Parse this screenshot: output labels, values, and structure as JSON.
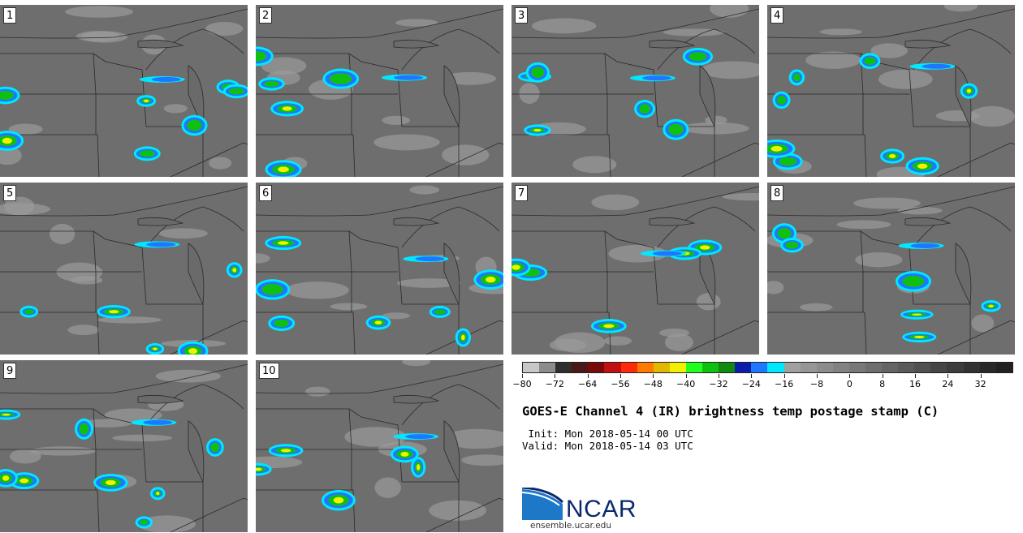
{
  "panels": [
    {
      "label": "1"
    },
    {
      "label": "2"
    },
    {
      "label": "3"
    },
    {
      "label": "4"
    },
    {
      "label": "5"
    },
    {
      "label": "6"
    },
    {
      "label": "7"
    },
    {
      "label": "8"
    },
    {
      "label": "9"
    },
    {
      "label": "10"
    }
  ],
  "colorbar": {
    "colors": [
      "#c8c8c8",
      "#8c8c8c",
      "#2e2e2e",
      "#4a1818",
      "#7a0a0a",
      "#c01010",
      "#ff2a0a",
      "#ff7a00",
      "#e0b800",
      "#f0f000",
      "#20ff20",
      "#10c010",
      "#108a10",
      "#0a1eaa",
      "#1e78ff",
      "#00e8ff",
      "#a0a0a0",
      "#969696",
      "#8c8c8c",
      "#828282",
      "#787878",
      "#6e6e6e",
      "#646464",
      "#5a5a5a",
      "#505050",
      "#464646",
      "#3c3c3c",
      "#323232",
      "#282828",
      "#202020"
    ],
    "tick_labels": [
      "−80",
      "−72",
      "−64",
      "−56",
      "−48",
      "−40",
      "−32",
      "−24",
      "−16",
      "−8",
      "0",
      "8",
      "16",
      "24",
      "32"
    ]
  },
  "title": "GOES-E Channel 4 (IR) brightness temp postage stamp (C)",
  "init_line": " Init: Mon 2018-05-14 00 UTC",
  "valid_line": "Valid: Mon 2018-05-14 03 UTC",
  "logo_text": "NCAR",
  "logo_url": "ensemble.ucar.edu"
}
